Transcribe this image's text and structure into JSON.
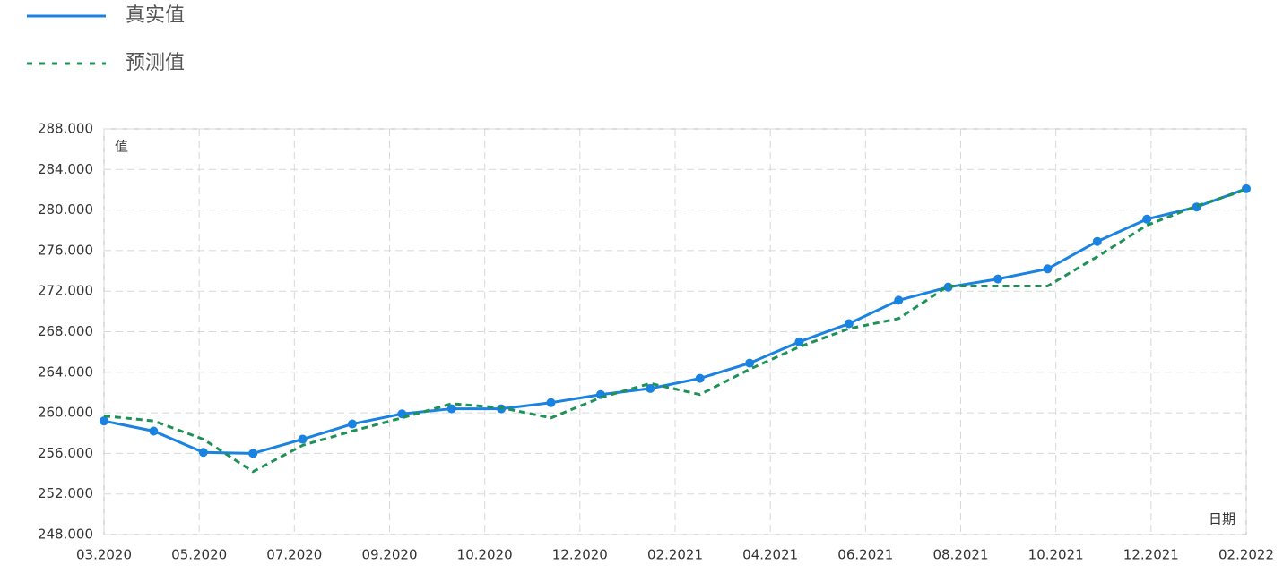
{
  "chart_data": {
    "type": "line",
    "y_label": "值",
    "x_label": "日期",
    "x": [
      0,
      1,
      2,
      3,
      4,
      5,
      6,
      7,
      8,
      9,
      10,
      11,
      12,
      13,
      14,
      15,
      16,
      17,
      18,
      19,
      20,
      21,
      22,
      23
    ],
    "xlim": [
      0,
      23
    ],
    "xticks": [
      {
        "value": 0,
        "label": "03.2020"
      },
      {
        "value": 1.917,
        "label": "05.2020"
      },
      {
        "value": 3.833,
        "label": "07.2020"
      },
      {
        "value": 5.75,
        "label": "09.2020"
      },
      {
        "value": 7.667,
        "label": "10.2020"
      },
      {
        "value": 9.583,
        "label": "12.2020"
      },
      {
        "value": 11.5,
        "label": "02.2021"
      },
      {
        "value": 13.417,
        "label": "04.2021"
      },
      {
        "value": 15.333,
        "label": "06.2021"
      },
      {
        "value": 17.25,
        "label": "08.2021"
      },
      {
        "value": 19.167,
        "label": "10.2021"
      },
      {
        "value": 21.083,
        "label": "12.2021"
      },
      {
        "value": 23,
        "label": "02.2022"
      }
    ],
    "ylim": [
      248,
      288
    ],
    "yticks": [
      {
        "value": 248,
        "label": "248.000"
      },
      {
        "value": 252,
        "label": "252.000"
      },
      {
        "value": 256,
        "label": "256.000"
      },
      {
        "value": 260,
        "label": "260.000"
      },
      {
        "value": 264,
        "label": "264.000"
      },
      {
        "value": 268,
        "label": "268.000"
      },
      {
        "value": 272,
        "label": "272.000"
      },
      {
        "value": 276,
        "label": "276.000"
      },
      {
        "value": 280,
        "label": "280.000"
      },
      {
        "value": 284,
        "label": "284.000"
      },
      {
        "value": 288,
        "label": "288.000"
      }
    ],
    "grid": true,
    "series": [
      {
        "name": "真实值",
        "color": "#1a82e0",
        "dash": false,
        "markers": true,
        "values": [
          259.2,
          258.2,
          256.1,
          256.0,
          257.4,
          258.9,
          259.9,
          260.4,
          260.4,
          261.0,
          261.8,
          262.4,
          263.4,
          264.9,
          267.0,
          268.8,
          271.1,
          272.4,
          273.2,
          274.2,
          276.9,
          279.1,
          280.3,
          282.1
        ]
      },
      {
        "name": "预测值",
        "color": "#1e9156",
        "dash": true,
        "markers": false,
        "values": [
          259.7,
          259.2,
          257.4,
          254.2,
          256.8,
          258.2,
          259.5,
          260.9,
          260.5,
          259.5,
          261.5,
          262.9,
          261.8,
          264.3,
          266.5,
          268.3,
          269.3,
          272.5,
          272.5,
          272.5,
          275.4,
          278.5,
          280.4,
          282.0
        ]
      }
    ]
  }
}
